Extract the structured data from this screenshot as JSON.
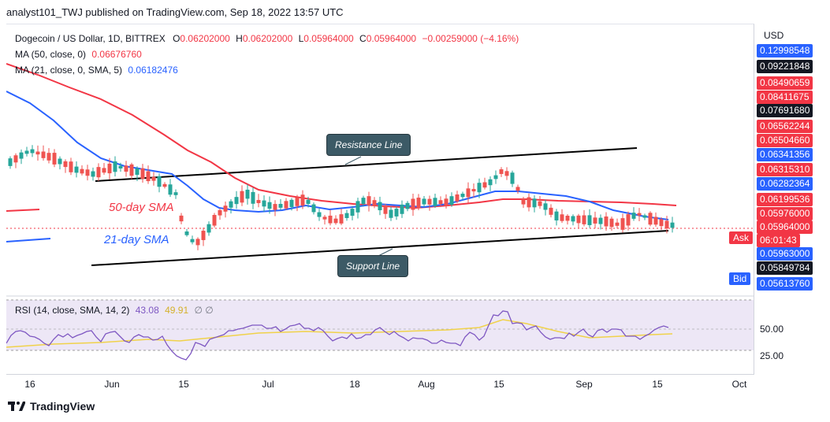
{
  "header": {
    "published_text": "analyst101_TWJ published on TradingView.com, Sep 18, 2022 13:57 UTC"
  },
  "symbol": {
    "title": "Dogecoin / US Dollar, 1D, BITTREX",
    "ohlc": {
      "o_label": "O",
      "o": "0.06202000",
      "h_label": "H",
      "h": "0.06202000",
      "l_label": "L",
      "l": "0.05964000",
      "c_label": "C",
      "c": "0.05964000",
      "change": "−0.00259000 (−4.16%)"
    }
  },
  "ma50": {
    "label": "MA (50, close, 0)",
    "value": "0.06676760",
    "color": "#f23645"
  },
  "ma21": {
    "label": "MA (21, close, 0, SMA, 5)",
    "value": "0.06182476",
    "color": "#2962ff"
  },
  "annotations": {
    "resistance": "Resistance Line",
    "support": "Support Line",
    "sma50": "50-day SMA",
    "sma21": "21-day SMA"
  },
  "price_axis": {
    "unit": "USD",
    "labels": [
      {
        "text": "0.12998548",
        "style": "blue"
      },
      {
        "text": "0.09221848",
        "style": "black"
      },
      {
        "text": "0.08490659",
        "style": "red"
      },
      {
        "text": "0.08411675",
        "style": "red"
      },
      {
        "text": "0.07691680",
        "style": "black"
      },
      {
        "text": "0.06562244",
        "style": "red"
      },
      {
        "text": "0.06504660",
        "style": "red"
      },
      {
        "text": "0.06341356",
        "style": "blue"
      },
      {
        "text": "0.06315310",
        "style": "red"
      },
      {
        "text": "0.06282364",
        "style": "blue"
      },
      {
        "text": "0.06199536",
        "style": "red"
      },
      {
        "text": "0.05976000",
        "style": "red"
      },
      {
        "text": "0.05964000",
        "style": "red"
      },
      {
        "text": "06:01:43",
        "style": "red"
      },
      {
        "text": "0.05963000",
        "style": "blue"
      },
      {
        "text": "0.05849784",
        "style": "black"
      },
      {
        "text": "0.05613760",
        "style": "blue"
      }
    ],
    "rsi_labels": [
      "50.00",
      "25.00"
    ],
    "ask": "Ask",
    "bid": "Bid"
  },
  "rsi": {
    "label": "RSI (14, close, SMA, 14, 2)",
    "value1": "43.08",
    "value2": "49.91",
    "extra": "∅ ∅"
  },
  "time_axis": [
    "16",
    "Jun",
    "15",
    "Jul",
    "18",
    "Aug",
    "15",
    "Sep",
    "15",
    "Oct"
  ],
  "footer": {
    "brand": "TradingView"
  },
  "colors": {
    "up": "#26a69a",
    "down": "#ef5350",
    "rsi": "#7e57c2",
    "rsi_ma": "#f0d24a",
    "rsi_band": "#ede7f6"
  }
}
